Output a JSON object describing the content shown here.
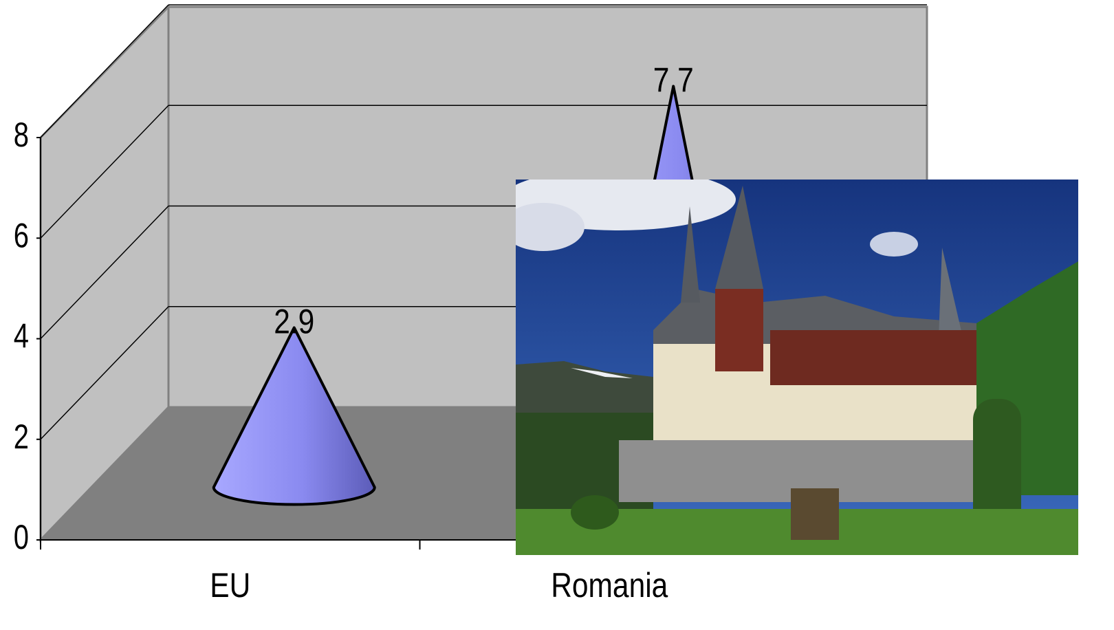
{
  "chart_data": {
    "type": "cone3d",
    "categories": [
      "EU",
      "Romania"
    ],
    "values": [
      2.9,
      7.7
    ],
    "color": "#8c8cf0",
    "ylim": [
      0,
      8
    ],
    "yticks": [
      0,
      2,
      4,
      6,
      8
    ],
    "grid": true
  }
}
